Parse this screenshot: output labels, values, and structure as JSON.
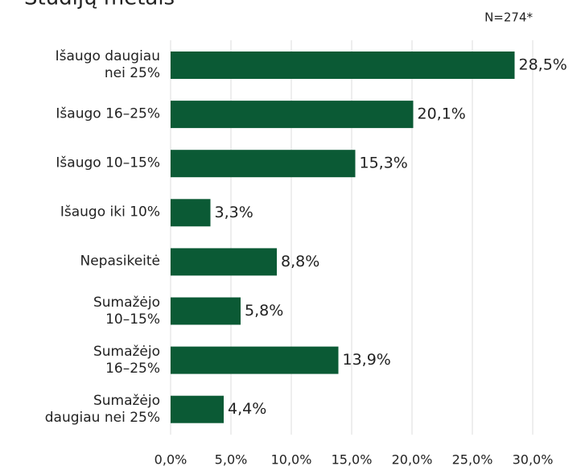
{
  "chart_data": {
    "type": "bar",
    "orientation": "horizontal",
    "title": "Studijų metais",
    "note": "N=274*",
    "categories": [
      "Išaugo daugiau\nnei 25%",
      "Išaugo 16–25%",
      "Išaugo 10–15%",
      "Išaugo iki 10%",
      "Nepasikeitė",
      "Sumažėjo\n10–15%",
      "Sumažėjo\n16–25%",
      "Sumažėjo\ndaugiau nei 25%"
    ],
    "values": [
      28.5,
      20.1,
      15.3,
      3.3,
      8.8,
      5.8,
      13.9,
      4.4
    ],
    "value_labels": [
      "28,5%",
      "20,1%",
      "15,3%",
      "3,3%",
      "8,8%",
      "5,8%",
      "13,9%",
      "4,4%"
    ],
    "color": "#0b5a35",
    "xlim": [
      0,
      30
    ],
    "xticks": [
      {
        "value": 0,
        "label": "0,0%"
      },
      {
        "value": 5,
        "label": "5,0%"
      },
      {
        "value": 10,
        "label": "10,0%"
      },
      {
        "value": 15,
        "label": "15,0%"
      },
      {
        "value": 20,
        "label": "20,0%"
      },
      {
        "value": 25,
        "label": "25,0%"
      },
      {
        "value": 30,
        "label": "30,0%"
      }
    ],
    "grid": true
  }
}
